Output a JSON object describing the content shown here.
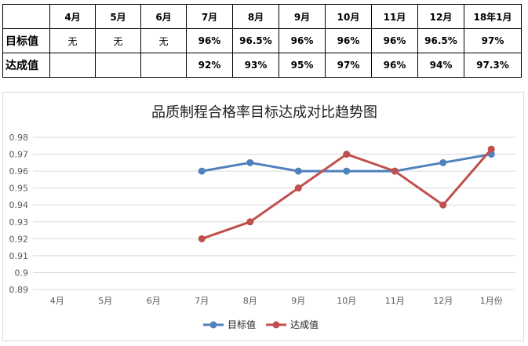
{
  "table": {
    "header": [
      "",
      "4月",
      "5月",
      "6月",
      "7月",
      "8月",
      "9月",
      "10月",
      "11月",
      "12月",
      "18年1月"
    ],
    "rows": [
      {
        "label": "目标值",
        "cells": [
          "无",
          "无",
          "无",
          "96%",
          "96.5%",
          "96%",
          "96%",
          "96%",
          "96.5%",
          "97%"
        ]
      },
      {
        "label": "达成值",
        "cells": [
          "",
          "",
          "",
          "92%",
          "93%",
          "95%",
          "97%",
          "96%",
          "94%",
          "97.3%"
        ]
      }
    ]
  },
  "chart_data": {
    "type": "line",
    "title": "品质制程合格率目标达成对比趋势图",
    "categories": [
      "4月",
      "5月",
      "6月",
      "7月",
      "8月",
      "9月",
      "10月",
      "11月",
      "12月",
      "1月份"
    ],
    "series": [
      {
        "name": "目标值",
        "color": "#4f81bd",
        "values": [
          null,
          null,
          null,
          0.96,
          0.965,
          0.96,
          0.96,
          0.96,
          0.965,
          0.97
        ]
      },
      {
        "name": "达成值",
        "color": "#c0504d",
        "values": [
          null,
          null,
          null,
          0.92,
          0.93,
          0.95,
          0.97,
          0.96,
          0.94,
          0.973
        ]
      }
    ],
    "yticks": [
      "0.89",
      "0.9",
      "0.91",
      "0.92",
      "0.93",
      "0.94",
      "0.95",
      "0.96",
      "0.97",
      "0.98"
    ],
    "ylim": [
      0.89,
      0.98
    ],
    "grid": true,
    "legend_position": "bottom"
  }
}
